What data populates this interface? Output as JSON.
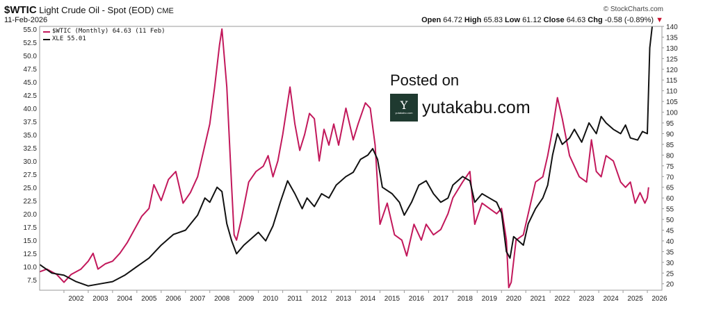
{
  "header": {
    "symbol": "$WTIC",
    "name": "Light Crude Oil - Spot (EOD)",
    "exchange": "CME",
    "date": "11-Feb-2026",
    "brand": "© StockCharts.com",
    "open_label": "Open",
    "open": "64.72",
    "high_label": "High",
    "high": "65.83",
    "low_label": "Low",
    "low": "61.12",
    "close_label": "Close",
    "close": "64.63",
    "chg_label": "Chg",
    "chg": "-0.58 (-0.89%)",
    "chg_arrow": "▼"
  },
  "watermark": {
    "posted": "Posted on",
    "site": "yutakabu.com",
    "logo_letter": "Y",
    "logo_small": "yutakabu.com"
  },
  "chart_data": {
    "type": "line",
    "legend": [
      {
        "label": "$WTIC (Monthly) 64.63 (11 Feb)",
        "color": "#c2185b"
      },
      {
        "label": "XLE 55.01",
        "color": "#111111"
      }
    ],
    "x_ticks": [
      "2002",
      "2003",
      "2004",
      "2005",
      "2006",
      "2007",
      "2008",
      "2009",
      "2010",
      "2011",
      "2012",
      "2013",
      "2014",
      "2015",
      "2016",
      "2017",
      "2018",
      "2019",
      "2020",
      "2021",
      "2022",
      "2023",
      "2024",
      "2025",
      "2026"
    ],
    "y_left": {
      "range": [
        5.5,
        55.5
      ],
      "ticks": [
        "55.0",
        "52.5",
        "50.0",
        "47.5",
        "45.0",
        "42.5",
        "40.0",
        "37.5",
        "35.0",
        "32.5",
        "30.0",
        "27.5",
        "25.0",
        "22.5",
        "20.0",
        "17.5",
        "15.0",
        "12.5",
        "10.0",
        "7.5"
      ]
    },
    "y_right": {
      "range": [
        17,
        140
      ],
      "ticks": [
        "140",
        "135",
        "130",
        "125",
        "120",
        "115",
        "110",
        "105",
        "100",
        "95",
        "90",
        "85",
        "80",
        "75",
        "70",
        "65",
        "60",
        "55",
        "50",
        "45",
        "40",
        "35",
        "30",
        "25",
        "20"
      ]
    },
    "grid": false,
    "series": [
      {
        "name": "$WTIC (Monthly) 64.63 (11 Feb)",
        "axis": "left",
        "color": "#c2185b",
        "points": [
          [
            2001.0,
            9
          ],
          [
            2001.3,
            9.5
          ],
          [
            2001.7,
            8.5
          ],
          [
            2002.0,
            7
          ],
          [
            2002.3,
            8.5
          ],
          [
            2002.7,
            9.5
          ],
          [
            2003.0,
            11
          ],
          [
            2003.2,
            12.5
          ],
          [
            2003.4,
            9.5
          ],
          [
            2003.7,
            10.5
          ],
          [
            2004.0,
            11
          ],
          [
            2004.3,
            12.5
          ],
          [
            2004.6,
            14.5
          ],
          [
            2004.9,
            17
          ],
          [
            2005.2,
            19.5
          ],
          [
            2005.5,
            21
          ],
          [
            2005.7,
            25.5
          ],
          [
            2006.0,
            22.5
          ],
          [
            2006.3,
            26.5
          ],
          [
            2006.6,
            28
          ],
          [
            2006.9,
            22
          ],
          [
            2007.2,
            24
          ],
          [
            2007.5,
            27
          ],
          [
            2007.8,
            33
          ],
          [
            2008.0,
            37
          ],
          [
            2008.2,
            44
          ],
          [
            2008.4,
            52
          ],
          [
            2008.5,
            55
          ],
          [
            2008.7,
            44
          ],
          [
            2008.9,
            25
          ],
          [
            2009.0,
            16
          ],
          [
            2009.1,
            15
          ],
          [
            2009.3,
            19
          ],
          [
            2009.6,
            26
          ],
          [
            2009.9,
            28
          ],
          [
            2010.2,
            29
          ],
          [
            2010.4,
            31
          ],
          [
            2010.6,
            27
          ],
          [
            2010.8,
            30
          ],
          [
            2011.0,
            35
          ],
          [
            2011.2,
            41
          ],
          [
            2011.3,
            44
          ],
          [
            2011.5,
            37
          ],
          [
            2011.7,
            32
          ],
          [
            2011.9,
            35
          ],
          [
            2012.1,
            39
          ],
          [
            2012.3,
            38
          ],
          [
            2012.5,
            30
          ],
          [
            2012.7,
            36
          ],
          [
            2012.9,
            33
          ],
          [
            2013.1,
            37
          ],
          [
            2013.3,
            33
          ],
          [
            2013.6,
            40
          ],
          [
            2013.9,
            34
          ],
          [
            2014.1,
            37
          ],
          [
            2014.4,
            41
          ],
          [
            2014.6,
            40
          ],
          [
            2014.8,
            33
          ],
          [
            2015.0,
            18
          ],
          [
            2015.3,
            22
          ],
          [
            2015.6,
            16
          ],
          [
            2015.9,
            15
          ],
          [
            2016.1,
            12
          ],
          [
            2016.4,
            18
          ],
          [
            2016.7,
            15
          ],
          [
            2016.9,
            18
          ],
          [
            2017.2,
            16
          ],
          [
            2017.5,
            17
          ],
          [
            2017.8,
            20
          ],
          [
            2018.0,
            23
          ],
          [
            2018.4,
            26
          ],
          [
            2018.7,
            28
          ],
          [
            2018.9,
            18
          ],
          [
            2019.2,
            22
          ],
          [
            2019.5,
            21
          ],
          [
            2019.8,
            20
          ],
          [
            2020.0,
            21
          ],
          [
            2020.2,
            15
          ],
          [
            2020.3,
            6
          ],
          [
            2020.4,
            7
          ],
          [
            2020.6,
            15
          ],
          [
            2020.9,
            16
          ],
          [
            2021.1,
            20
          ],
          [
            2021.4,
            26
          ],
          [
            2021.7,
            27
          ],
          [
            2021.9,
            31
          ],
          [
            2022.1,
            36
          ],
          [
            2022.3,
            42
          ],
          [
            2022.5,
            38
          ],
          [
            2022.8,
            31
          ],
          [
            2023.0,
            29
          ],
          [
            2023.2,
            27
          ],
          [
            2023.5,
            26
          ],
          [
            2023.7,
            34
          ],
          [
            2023.9,
            28
          ],
          [
            2024.1,
            27
          ],
          [
            2024.3,
            31
          ],
          [
            2024.6,
            30
          ],
          [
            2024.9,
            26
          ],
          [
            2025.1,
            25
          ],
          [
            2025.3,
            26
          ],
          [
            2025.5,
            22
          ],
          [
            2025.7,
            24
          ],
          [
            2025.9,
            22
          ],
          [
            2026.0,
            23
          ],
          [
            2026.05,
            25
          ]
        ]
      },
      {
        "name": "XLE 55.01",
        "axis": "right",
        "color": "#111111",
        "points": [
          [
            2001.0,
            29
          ],
          [
            2001.5,
            25
          ],
          [
            2002.0,
            24
          ],
          [
            2002.5,
            21
          ],
          [
            2003.0,
            19
          ],
          [
            2003.5,
            20
          ],
          [
            2004.0,
            21
          ],
          [
            2004.5,
            24
          ],
          [
            2005.0,
            28
          ],
          [
            2005.5,
            32
          ],
          [
            2006.0,
            38
          ],
          [
            2006.5,
            43
          ],
          [
            2007.0,
            45
          ],
          [
            2007.5,
            52
          ],
          [
            2007.8,
            60
          ],
          [
            2008.0,
            58
          ],
          [
            2008.3,
            65
          ],
          [
            2008.5,
            63
          ],
          [
            2008.7,
            48
          ],
          [
            2008.9,
            40
          ],
          [
            2009.1,
            34
          ],
          [
            2009.4,
            38
          ],
          [
            2009.7,
            41
          ],
          [
            2010.0,
            44
          ],
          [
            2010.3,
            40
          ],
          [
            2010.6,
            47
          ],
          [
            2010.9,
            58
          ],
          [
            2011.2,
            68
          ],
          [
            2011.5,
            62
          ],
          [
            2011.8,
            55
          ],
          [
            2012.0,
            60
          ],
          [
            2012.3,
            56
          ],
          [
            2012.6,
            62
          ],
          [
            2012.9,
            60
          ],
          [
            2013.2,
            66
          ],
          [
            2013.6,
            70
          ],
          [
            2013.9,
            72
          ],
          [
            2014.2,
            78
          ],
          [
            2014.5,
            80
          ],
          [
            2014.7,
            83
          ],
          [
            2014.9,
            78
          ],
          [
            2015.1,
            65
          ],
          [
            2015.5,
            62
          ],
          [
            2015.8,
            58
          ],
          [
            2016.0,
            52
          ],
          [
            2016.3,
            58
          ],
          [
            2016.6,
            66
          ],
          [
            2016.9,
            68
          ],
          [
            2017.2,
            62
          ],
          [
            2017.5,
            58
          ],
          [
            2017.8,
            60
          ],
          [
            2018.0,
            66
          ],
          [
            2018.4,
            70
          ],
          [
            2018.7,
            68
          ],
          [
            2018.9,
            58
          ],
          [
            2019.2,
            62
          ],
          [
            2019.5,
            60
          ],
          [
            2019.8,
            58
          ],
          [
            2020.0,
            53
          ],
          [
            2020.2,
            35
          ],
          [
            2020.35,
            32
          ],
          [
            2020.5,
            42
          ],
          [
            2020.9,
            38
          ],
          [
            2021.1,
            48
          ],
          [
            2021.4,
            55
          ],
          [
            2021.7,
            60
          ],
          [
            2021.9,
            66
          ],
          [
            2022.1,
            80
          ],
          [
            2022.3,
            90
          ],
          [
            2022.5,
            85
          ],
          [
            2022.8,
            88
          ],
          [
            2023.0,
            92
          ],
          [
            2023.3,
            86
          ],
          [
            2023.6,
            95
          ],
          [
            2023.9,
            90
          ],
          [
            2024.1,
            98
          ],
          [
            2024.3,
            95
          ],
          [
            2024.6,
            92
          ],
          [
            2024.9,
            90
          ],
          [
            2025.1,
            94
          ],
          [
            2025.3,
            88
          ],
          [
            2025.6,
            87
          ],
          [
            2025.8,
            91
          ],
          [
            2026.0,
            90
          ],
          [
            2026.1,
            130
          ],
          [
            2026.2,
            140
          ]
        ]
      }
    ]
  }
}
